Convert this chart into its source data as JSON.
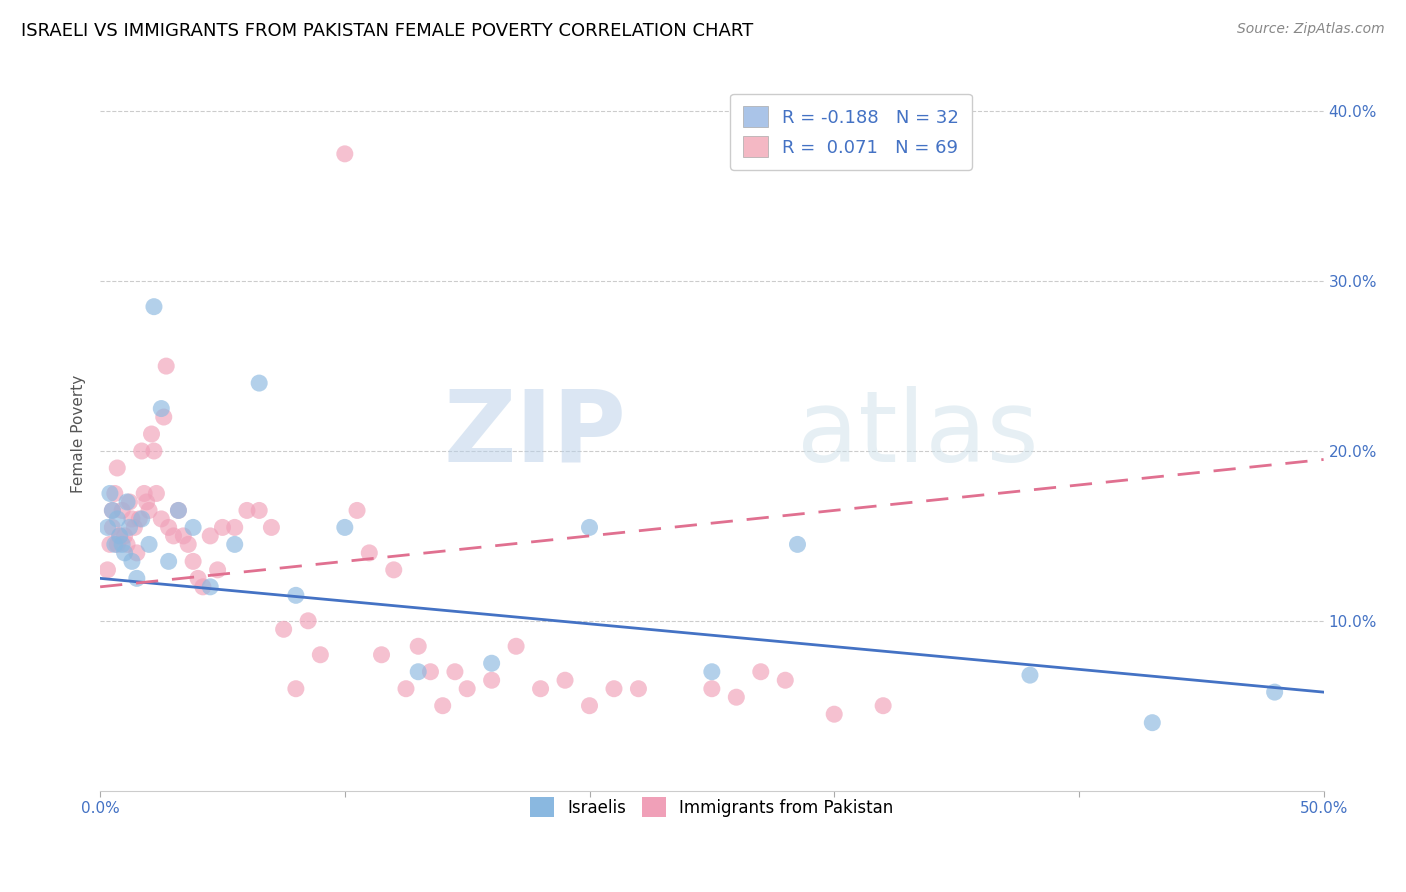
{
  "title": "ISRAELI VS IMMIGRANTS FROM PAKISTAN FEMALE POVERTY CORRELATION CHART",
  "source": "Source: ZipAtlas.com",
  "ylabel": "Female Poverty",
  "xlim": [
    0.0,
    0.5
  ],
  "ylim": [
    0.0,
    0.42
  ],
  "yticks": [
    0.1,
    0.2,
    0.3,
    0.4
  ],
  "ytick_labels": [
    "10.0%",
    "20.0%",
    "30.0%",
    "40.0%"
  ],
  "xtick_left_label": "0.0%",
  "xtick_right_label": "50.0%",
  "watermark_zip": "ZIP",
  "watermark_atlas": "atlas",
  "legend_r1": "R = -0.188",
  "legend_n1": "N = 32",
  "legend_r2": "R =  0.071",
  "legend_n2": "N = 69",
  "legend_color1": "#aac4e8",
  "legend_color2": "#f4b8c4",
  "legend_bottom": [
    "Israelis",
    "Immigrants from Pakistan"
  ],
  "israelis_color": "#8ab8e0",
  "pakistan_color": "#f0a0b8",
  "trend_israel_color": "#4472c4",
  "trend_pakistan_color": "#e07090",
  "israel_trend_x0": 0.0,
  "israel_trend_y0": 0.125,
  "israel_trend_x1": 0.5,
  "israel_trend_y1": 0.058,
  "pakistan_trend_x0": 0.0,
  "pakistan_trend_y0": 0.12,
  "pakistan_trend_x1": 0.5,
  "pakistan_trend_y1": 0.195,
  "israelis_x": [
    0.003,
    0.004,
    0.005,
    0.006,
    0.007,
    0.008,
    0.009,
    0.01,
    0.011,
    0.012,
    0.013,
    0.015,
    0.017,
    0.02,
    0.022,
    0.025,
    0.028,
    0.032,
    0.038,
    0.045,
    0.055,
    0.065,
    0.08,
    0.1,
    0.13,
    0.16,
    0.2,
    0.25,
    0.285,
    0.38,
    0.43,
    0.48
  ],
  "israelis_y": [
    0.155,
    0.175,
    0.165,
    0.145,
    0.16,
    0.15,
    0.145,
    0.14,
    0.17,
    0.155,
    0.135,
    0.125,
    0.16,
    0.145,
    0.285,
    0.225,
    0.135,
    0.165,
    0.155,
    0.12,
    0.145,
    0.24,
    0.115,
    0.155,
    0.07,
    0.075,
    0.155,
    0.07,
    0.145,
    0.068,
    0.04,
    0.058
  ],
  "pakistan_x": [
    0.003,
    0.004,
    0.005,
    0.005,
    0.006,
    0.007,
    0.007,
    0.008,
    0.009,
    0.01,
    0.011,
    0.012,
    0.013,
    0.014,
    0.015,
    0.016,
    0.017,
    0.018,
    0.019,
    0.02,
    0.021,
    0.022,
    0.023,
    0.025,
    0.026,
    0.027,
    0.028,
    0.03,
    0.032,
    0.034,
    0.036,
    0.038,
    0.04,
    0.042,
    0.045,
    0.048,
    0.05,
    0.055,
    0.06,
    0.065,
    0.07,
    0.075,
    0.08,
    0.085,
    0.09,
    0.1,
    0.105,
    0.11,
    0.115,
    0.12,
    0.125,
    0.13,
    0.135,
    0.14,
    0.145,
    0.15,
    0.16,
    0.17,
    0.18,
    0.19,
    0.2,
    0.21,
    0.22,
    0.25,
    0.26,
    0.27,
    0.28,
    0.3,
    0.32
  ],
  "pakistan_y": [
    0.13,
    0.145,
    0.165,
    0.155,
    0.175,
    0.19,
    0.145,
    0.15,
    0.165,
    0.15,
    0.145,
    0.17,
    0.16,
    0.155,
    0.14,
    0.16,
    0.2,
    0.175,
    0.17,
    0.165,
    0.21,
    0.2,
    0.175,
    0.16,
    0.22,
    0.25,
    0.155,
    0.15,
    0.165,
    0.15,
    0.145,
    0.135,
    0.125,
    0.12,
    0.15,
    0.13,
    0.155,
    0.155,
    0.165,
    0.165,
    0.155,
    0.095,
    0.06,
    0.1,
    0.08,
    0.375,
    0.165,
    0.14,
    0.08,
    0.13,
    0.06,
    0.085,
    0.07,
    0.05,
    0.07,
    0.06,
    0.065,
    0.085,
    0.06,
    0.065,
    0.05,
    0.06,
    0.06,
    0.06,
    0.055,
    0.07,
    0.065,
    0.045,
    0.05
  ]
}
